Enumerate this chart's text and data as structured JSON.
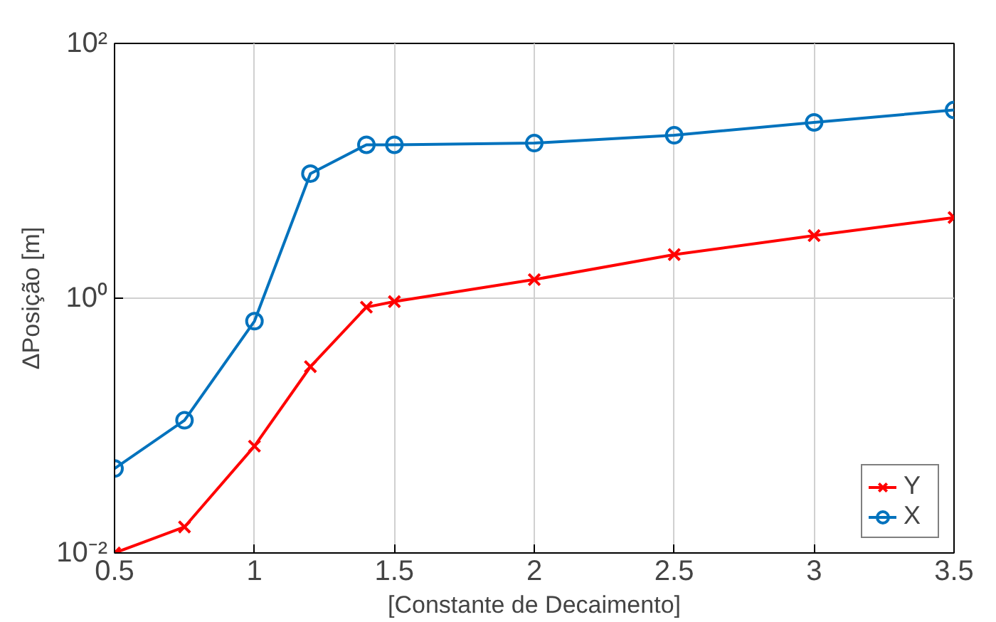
{
  "chart_data": {
    "type": "line",
    "xlabel": "[Constante de Decaimento]",
    "ylabel": "ΔPosição [m]",
    "x": [
      0.5,
      0.75,
      1.0,
      1.2,
      1.4,
      1.5,
      2.0,
      2.5,
      3.0,
      3.5
    ],
    "series": [
      {
        "name": "Y",
        "color": "#ff0000",
        "marker": "cross",
        "values": [
          0.01,
          0.016,
          0.069,
          0.29,
          0.85,
          0.94,
          1.4,
          2.2,
          3.1,
          4.3
        ]
      },
      {
        "name": "X",
        "color": "#0072bd",
        "marker": "circle",
        "values": [
          0.046,
          0.11,
          0.66,
          9.5,
          16,
          16,
          16.5,
          19,
          24,
          30
        ]
      }
    ],
    "xlim": [
      0.5,
      3.5
    ],
    "xticks": [
      0.5,
      1,
      1.5,
      2,
      2.5,
      3,
      3.5
    ],
    "ylim": [
      0.01,
      100
    ],
    "yticks": [
      {
        "value": 0.01,
        "label": "10⁻²"
      },
      {
        "value": 1,
        "label": "10⁰"
      },
      {
        "value": 100,
        "label": "10²"
      }
    ],
    "log": "y",
    "grid": true,
    "legend": "bottom right",
    "line_style": "solid"
  }
}
